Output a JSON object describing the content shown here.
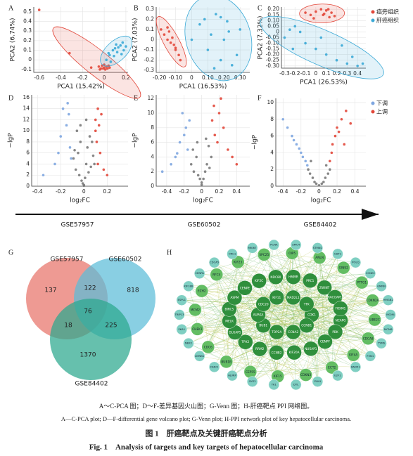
{
  "panel_labels": [
    "A",
    "B",
    "C",
    "D",
    "E",
    "F",
    "G",
    "H"
  ],
  "chart_data": [
    {
      "type": "scatter",
      "x_label": "PCA1 (15.42%)",
      "y_label": "PCA2 (6.74%)",
      "xlim": [
        -0.65,
        0.22
      ],
      "ylim": [
        -0.13,
        0.55
      ],
      "xticks": [
        -0.6,
        -0.4,
        -0.2,
        0,
        0.2
      ],
      "yticks": [
        -0.1,
        0,
        0.1,
        0.2,
        0.3,
        0.4,
        0.5
      ],
      "ellipse": true,
      "grid": true,
      "series": [
        {
          "color": "#e2473a",
          "x": [
            -0.6,
            -0.32,
            -0.12,
            -0.05,
            -0.03,
            -0.02,
            0,
            0.01,
            0.02,
            0.03,
            0.04,
            -0.04,
            0.05,
            0,
            -0.01
          ],
          "y": [
            0.52,
            0.07,
            -0.08,
            -0.07,
            -0.09,
            -0.06,
            -0.08,
            -0.1,
            -0.07,
            -0.09,
            -0.06,
            -0.1,
            -0.08,
            -0.05,
            -0.09
          ]
        },
        {
          "color": "#3aa9d6",
          "x": [
            0.02,
            0.05,
            0.08,
            0.1,
            0.12,
            0.15,
            0.17,
            0.18,
            0.06,
            0.09,
            0.13,
            0.04,
            0.11,
            0.16,
            0.2
          ],
          "y": [
            0,
            0.05,
            0.1,
            0.12,
            0.08,
            0.15,
            0.18,
            0.1,
            -0.02,
            0.04,
            0.13,
            0.07,
            0.16,
            0.06,
            0.14
          ]
        }
      ]
    },
    {
      "type": "scatter",
      "x_label": "PCA1 (16.53%)",
      "y_label": "PCA2 (7.03%)",
      "xlim": [
        -0.22,
        0.36
      ],
      "ylim": [
        -0.32,
        0.32
      ],
      "xticks": [
        {
          "value": -0.2,
          "label": "-0.20"
        },
        {
          "value": -0.1,
          "label": "-0.10"
        },
        0,
        {
          "value": 0.1,
          "label": "0.10"
        },
        {
          "value": 0.2,
          "label": "0.20"
        },
        {
          "value": 0.3,
          "label": "0.30"
        }
      ],
      "yticks": [
        -0.3,
        -0.2,
        -0.1,
        0,
        0.1,
        0.2,
        0.3
      ],
      "ellipse": true,
      "grid": true,
      "series": [
        {
          "color": "#e2473a",
          "x": [
            -0.19,
            -0.17,
            -0.15,
            -0.14,
            -0.13,
            -0.12,
            -0.11,
            -0.1,
            -0.08,
            -0.07,
            -0.15,
            -0.1
          ],
          "y": [
            0.1,
            0.05,
            0,
            0.08,
            -0.03,
            0.02,
            -0.05,
            -0.1,
            -0.15,
            -0.2,
            0.12,
            -0.08
          ]
        },
        {
          "color": "#3aa9d6",
          "x": [
            0,
            0.05,
            0.08,
            0.1,
            0.12,
            0.15,
            0.18,
            0.2,
            0.22,
            0.25,
            0.28,
            0.3,
            0.14,
            0.18,
            0.23
          ],
          "y": [
            0,
            0.15,
            0.2,
            -0.1,
            0.05,
            0.25,
            -0.2,
            0,
            0.18,
            -0.25,
            -0.15,
            0.1,
            -0.28,
            0.22,
            0.08
          ]
        }
      ]
    },
    {
      "type": "scatter",
      "x_label": "PCA1 (26.53%)",
      "y_label": "PCA2 (7.32%)",
      "xlim": [
        -0.33,
        0.48
      ],
      "ylim": [
        -0.32,
        0.22
      ],
      "xticks": [
        -0.3,
        -0.2,
        -0.1,
        0,
        0.1,
        0.2,
        0.3,
        0.4
      ],
      "yticks": [
        {
          "value": -0.3,
          "label": "-0.30"
        },
        {
          "value": -0.25,
          "label": "-0.25"
        },
        {
          "value": -0.2,
          "label": "-0.20"
        },
        {
          "value": -0.15,
          "label": "-0.15"
        },
        {
          "value": -0.1,
          "label": "-0.10"
        },
        {
          "value": -0.05,
          "label": "-0.05"
        },
        0,
        {
          "value": 0.05,
          "label": "0.05"
        },
        {
          "value": 0.1,
          "label": "0.10"
        },
        {
          "value": 0.15,
          "label": "0.15"
        },
        {
          "value": 0.2,
          "label": "0.20"
        }
      ],
      "ellipse": true,
      "grid": true,
      "legend": "outside-right",
      "series": [
        {
          "name": "癌旁组织",
          "color": "#e2473a",
          "x": [
            -0.1,
            -0.05,
            0,
            0.05,
            0.08,
            0.1,
            0.12,
            0.15,
            0.18,
            -0.02,
            0.07,
            0.13
          ],
          "y": [
            0.17,
            0.15,
            0.18,
            0.2,
            0.16,
            0.19,
            0.2,
            0.17,
            0.14,
            0.12,
            0.15,
            0.13
          ]
        },
        {
          "name": "肝癌组织",
          "color": "#3aa9d6",
          "x": [
            -0.3,
            -0.25,
            -0.2,
            -0.1,
            0,
            0.1,
            0.2,
            0.3,
            0.4,
            0.45,
            -0.15,
            0.05,
            0.25,
            0.35,
            -0.22
          ],
          "y": [
            -0.05,
            0.02,
            0.05,
            -0.1,
            -0.15,
            -0.2,
            -0.25,
            -0.28,
            -0.3,
            -0.28,
            0,
            -0.05,
            -0.12,
            -0.22,
            -0.15
          ]
        }
      ]
    },
    {
      "type": "scatter",
      "x_label": "log₂FC",
      "y_label": "−lgP",
      "xlim": [
        -0.45,
        0.38
      ],
      "ylim": [
        0,
        16.5
      ],
      "xticks": [
        -0.4,
        -0.2,
        0,
        0.2
      ],
      "yticks": [
        0,
        2,
        4,
        6,
        8,
        10,
        12,
        14,
        16
      ],
      "grid": true,
      "series": [
        {
          "color": "#7a7a7a",
          "x": [
            -0.09,
            -0.07,
            -0.05,
            -0.04,
            -0.03,
            -0.02,
            -0.01,
            0,
            0.01,
            0.02,
            0.03,
            0.04,
            0.05,
            0.06,
            0.08,
            0.09,
            -0.06,
            0,
            0.02,
            -0.03,
            -0.08,
            0.07
          ],
          "y": [
            5,
            3,
            6,
            2,
            8,
            1,
            0.5,
            0.2,
            1.5,
            4,
            7,
            2.5,
            9,
            3.5,
            5.5,
            4,
            10,
            0.1,
            12,
            11,
            6.5,
            8
          ]
        },
        {
          "color": "#7ea6e0",
          "x": [
            -0.35,
            -0.25,
            -0.2,
            -0.18,
            -0.15,
            -0.13,
            -0.12,
            -0.11,
            -0.22,
            -0.14
          ],
          "y": [
            2,
            4,
            9,
            14,
            11,
            13,
            7,
            5,
            6,
            15
          ]
        },
        {
          "color": "#e2473a",
          "x": [
            0.1,
            0.11,
            0.12,
            0.14,
            0.15,
            0.17,
            0.2,
            0.12,
            0.13,
            0.1
          ],
          "y": [
            10,
            8,
            4,
            6,
            13,
            3,
            2,
            14,
            11,
            12
          ]
        }
      ]
    },
    {
      "type": "scatter",
      "x_label": "log₂FC",
      "y_label": "−lgP",
      "xlim": [
        -0.52,
        0.55
      ],
      "ylim": [
        0,
        12.5
      ],
      "xticks": [
        -0.4,
        -0.2,
        0,
        0.2,
        0.4
      ],
      "yticks": [
        0,
        2,
        4,
        6,
        8,
        10,
        12
      ],
      "grid": true,
      "series": [
        {
          "color": "#7a7a7a",
          "x": [
            -0.12,
            -0.09,
            -0.06,
            -0.04,
            -0.02,
            0,
            0.02,
            0.04,
            0.06,
            0.09,
            0.11,
            -0.1,
            0.08,
            -0.05,
            0.05,
            0
          ],
          "y": [
            3,
            2,
            4,
            1.5,
            1,
            0.2,
            1,
            2,
            3,
            2.5,
            4,
            5,
            5.5,
            6,
            6.5,
            0.5
          ]
        },
        {
          "color": "#7ea6e0",
          "x": [
            -0.45,
            -0.35,
            -0.3,
            -0.25,
            -0.2,
            -0.18,
            -0.16,
            -0.14,
            -0.22,
            -0.28
          ],
          "y": [
            2,
            3,
            4,
            6,
            7,
            8,
            5,
            9,
            10,
            4.5
          ]
        },
        {
          "color": "#e2473a",
          "x": [
            0.12,
            0.15,
            0.18,
            0.2,
            0.25,
            0.3,
            0.35,
            0.4,
            0.14,
            0.22
          ],
          "y": [
            9,
            7,
            6,
            10,
            8,
            5,
            4,
            3,
            11,
            12
          ]
        }
      ]
    },
    {
      "type": "scatter",
      "x_label": "log₂FC",
      "y_label": "−lgP",
      "xlim": [
        -0.48,
        0.52
      ],
      "ylim": [
        0,
        10.5
      ],
      "xticks": [
        -0.4,
        -0.2,
        0,
        0.2,
        0.4
      ],
      "yticks": [
        0,
        2,
        4,
        6,
        8,
        10
      ],
      "grid": true,
      "legend": "outside-right",
      "series": [
        {
          "color": "#7a7a7a",
          "x": [
            -0.12,
            -0.1,
            -0.07,
            -0.05,
            -0.03,
            0,
            0.03,
            0.05,
            0.07,
            0.1,
            0.12,
            -0.09,
            0.08
          ],
          "y": [
            2,
            1.5,
            1,
            0.5,
            0.3,
            0.1,
            0.3,
            0.5,
            1,
            1.5,
            2,
            3,
            2.5
          ]
        },
        {
          "name": "下调",
          "color": "#7ea6e0",
          "x": [
            -0.4,
            -0.35,
            -0.3,
            -0.25,
            -0.2,
            -0.18,
            -0.15,
            -0.13,
            -0.28,
            -0.22
          ],
          "y": [
            8,
            7,
            6,
            5,
            4,
            3.5,
            3,
            2.5,
            5.5,
            4.5
          ]
        },
        {
          "name": "上调",
          "color": "#e2473a",
          "x": [
            0.12,
            0.14,
            0.15,
            0.18,
            0.2,
            0.22,
            0.25,
            0.28,
            0.3,
            0.35
          ],
          "y": [
            3,
            4,
            5,
            6,
            7,
            6.5,
            8,
            5,
            9,
            7.5
          ]
        }
      ]
    },
    {
      "type": "venn",
      "sets": [
        {
          "name": "GSE57957",
          "color": "#e8736a"
        },
        {
          "name": "GSE60502",
          "color": "#5cbcd8"
        },
        {
          "name": "GSE84402",
          "color": "#2ba88e"
        }
      ],
      "regions": {
        "a": 137,
        "ab": 122,
        "b": 818,
        "abc": 76,
        "ac": 18,
        "bc": 225,
        "c": 1370
      }
    }
  ],
  "datasets": [
    "GSE57957",
    "GSE60502",
    "GSE84402"
  ],
  "network": {
    "groups": [
      {
        "color": "#2f8f3c",
        "nodes": [
          "CDK1",
          "CCNB1",
          "CCNA2",
          "TOP2A",
          "BUB1",
          "AURKA",
          "CDC20",
          "KIF11",
          "MAD2L1",
          "TTK",
          "NCAPG",
          "PBK",
          "CENPF",
          "NUSAP1",
          "KIF20A",
          "CCNB2",
          "RRM2",
          "TPX2",
          "DLGAP5",
          "MELK",
          "BIRC5",
          "ASPM",
          "CENPE",
          "KIF2C",
          "NDC80",
          "HMMR",
          "PRC1",
          "ZWINT",
          "RACGAP1",
          "FOXM1"
        ]
      },
      {
        "color": "#63bd63",
        "nodes": [
          "UBE2C",
          "CDCA8",
          "KIF4A",
          "ECT2",
          "CDKN3",
          "KIF15",
          "CEP55",
          "BUB1B",
          "CDC6",
          "CHEK1",
          "MCM2",
          "EZH2",
          "RFC4",
          "KIF23",
          "SPC25",
          "OIP5",
          "ANLN",
          "GINS2",
          "PTTG1",
          "CDKN2A"
        ]
      },
      {
        "color": "#7fcfc2",
        "nodes": [
          "MCM4",
          "MCM6",
          "TYMS",
          "FEN1",
          "RAD51",
          "E2F1",
          "PLK4",
          "DTL",
          "TK1",
          "CKS2",
          "HJURP",
          "FANCI",
          "LMNB1",
          "NEK2",
          "SKA1",
          "TRIP13",
          "ESPL1",
          "KIF18B",
          "CENPA",
          "CDCA5",
          "ORC1",
          "MKI67",
          "PCNA",
          "SMC4",
          "STMN1",
          "CDT1",
          "POLQ",
          "CCNE2",
          "GMNN",
          "HMGB2"
        ]
      }
    ]
  },
  "caption": {
    "zh_note": "A～C-PCA 图；D～F-差异基因火山图；G-Venn 图；H-肝癌靶点 PPI 网络图。",
    "en_note": "A—C-PCA plot; D—F-differential gene volcano plot; G-Venn plot; H-PPI network plot of key hepatocellular carcinoma.",
    "zh_title": "图 1　肝癌靶点及关键肝癌靶点分析",
    "en_title": "Fig. 1　Analysis of targets and key targets of hepatocellular carcinoma"
  }
}
